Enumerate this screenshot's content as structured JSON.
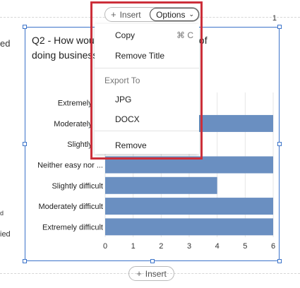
{
  "left_fragments": [
    "ed",
    "d",
    "ied"
  ],
  "page_number": "1",
  "toolbar": {
    "insert_label": "Insert",
    "options_label": "Options"
  },
  "menu": {
    "copy_label": "Copy",
    "copy_shortcut": "⌘ C",
    "remove_title_label": "Remove Title",
    "export_header": "Export To",
    "jpg_label": "JPG",
    "docx_label": "DOCX",
    "remove_label": "Remove"
  },
  "bottom_insert_label": "Insert",
  "chart_data": {
    "type": "bar",
    "orientation": "horizontal",
    "title": "Q2 - How would you rate the difficulty of doing business",
    "title_visible_parts": [
      "Q2 - How wou",
      "difficulty of",
      "doing business"
    ],
    "categories": [
      "Extremely easy",
      "Moderately easy",
      "Slightly easy",
      "Neither easy nor ...",
      "Slightly difficult",
      "Moderately difficult",
      "Extremely difficult"
    ],
    "category_labels_visible": [
      "Extremely ea",
      "Moderately ea",
      "Slightly ea",
      "Neither easy nor ...",
      "Slightly difficult",
      "Moderately difficult",
      "Extremely difficult"
    ],
    "values": [
      null,
      6,
      null,
      6,
      4,
      6,
      6
    ],
    "xticks": [
      "0",
      "1",
      "2",
      "3",
      "4",
      "5",
      "6"
    ],
    "xlim": [
      0,
      6
    ],
    "bar_color": "#6a8fc1",
    "grid": true
  }
}
